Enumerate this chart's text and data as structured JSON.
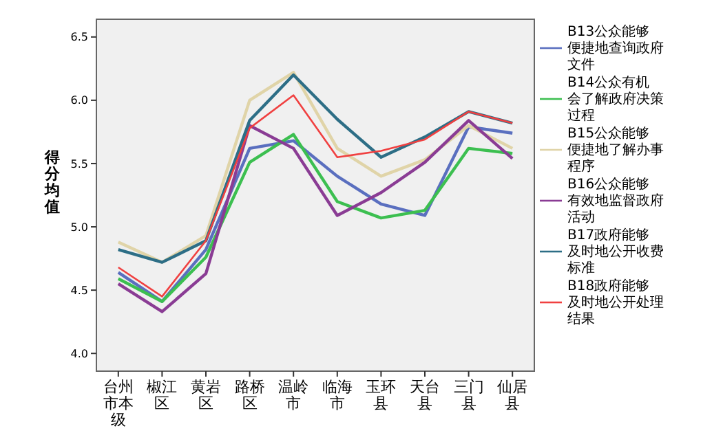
{
  "chart_data": {
    "type": "line",
    "ylabel": "得分均值",
    "categories": [
      "台州市本级",
      "椒江区",
      "黄岩区",
      "路桥区",
      "温岭市",
      "临海市",
      "玉环县",
      "天台县",
      "三门县",
      "仙居县"
    ],
    "ylim": [
      3.86,
      6.64
    ],
    "yticks": [
      {
        "value": 4,
        "label": "4.0"
      },
      {
        "value": 4.5,
        "label": "4.5"
      },
      {
        "value": 5,
        "label": "5.0"
      },
      {
        "value": 5.5,
        "label": "5.5"
      },
      {
        "value": 6,
        "label": "6.0"
      },
      {
        "value": 6.5,
        "label": "6.5"
      }
    ],
    "grid": false,
    "legend": "right",
    "marker": "none",
    "line_style": "solid",
    "series": [
      {
        "name": "B13公众能够便捷地查询政府文件",
        "color": "#5a6fbf",
        "values": [
          4.64,
          4.41,
          4.82,
          5.62,
          5.68,
          5.4,
          5.18,
          5.09,
          5.79,
          5.74
        ]
      },
      {
        "name": "B14公众有机会了解政府决策过程",
        "color": "#3cbf50",
        "values": [
          4.59,
          4.41,
          4.76,
          5.51,
          5.73,
          5.2,
          5.07,
          5.13,
          5.62,
          5.58
        ]
      },
      {
        "name": "B15公众能够便捷地了解办事程序",
        "color": "#e0d4a8",
        "values": [
          4.88,
          4.72,
          4.93,
          6.0,
          6.22,
          5.62,
          5.4,
          5.53,
          5.8,
          5.62
        ]
      },
      {
        "name": "B16公众能够有效地监督政府活动",
        "color": "#8a3c94",
        "values": [
          4.55,
          4.33,
          4.63,
          5.8,
          5.62,
          5.09,
          5.27,
          5.51,
          5.84,
          5.54
        ]
      },
      {
        "name": "B17政府能够及时地公开收费标准",
        "color": "#2d6e86",
        "values": [
          4.82,
          4.72,
          4.89,
          5.84,
          6.2,
          5.85,
          5.55,
          5.71,
          5.91,
          5.82
        ]
      },
      {
        "name": "B18政府能够及时地公开处理结果",
        "color": "#f04040",
        "values": [
          4.68,
          4.45,
          4.89,
          5.78,
          6.04,
          5.55,
          5.6,
          5.69,
          5.91,
          5.82
        ]
      }
    ]
  }
}
